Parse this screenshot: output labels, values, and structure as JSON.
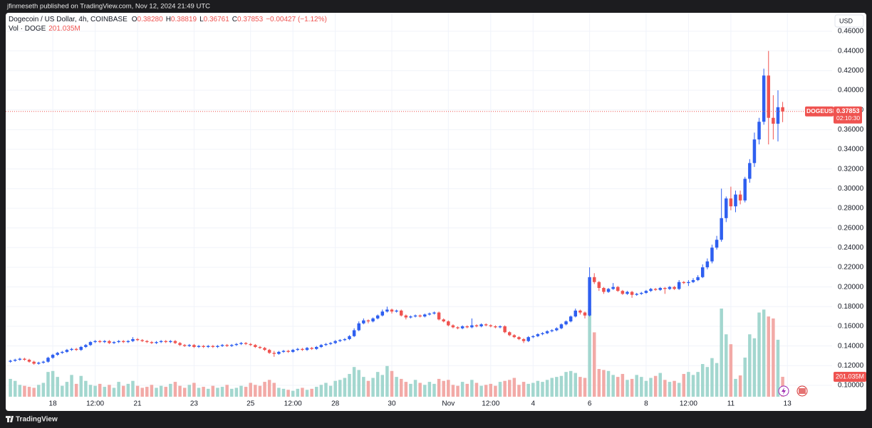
{
  "header": {
    "author_line": "jfinmeseth published on TradingView.com, Nov 12, 2024 21:49 UTC",
    "brand": "TradingView"
  },
  "chart_data": {
    "type": "candlestick",
    "title": "Dogecoin / US Dollar, 4h, COINBASE",
    "ohlc_letters": [
      "O",
      "H",
      "L",
      "C"
    ],
    "last_labels": [
      "0.38280",
      "0.38819",
      "0.36761",
      "0.37853"
    ],
    "change_label": "−0.00427 (−1.12%)",
    "volume_title": "Vol · DOGE",
    "volume_label": "201.035M",
    "currency": "USD",
    "price_tag": {
      "symbol": "DOGEUSD",
      "price": "0.37853",
      "countdown": "02:10:30"
    },
    "up_color": "#2e5ff0",
    "down_color": "#ef5350",
    "volume_up_color": "#a3d7cf",
    "volume_down_color": "#f2aaa7",
    "grid": true,
    "xlim": [
      -1,
      174.5
    ],
    "xticks": [
      {
        "value": 9,
        "label": "18"
      },
      {
        "value": 18,
        "label": "12:00"
      },
      {
        "value": 27,
        "label": "21"
      },
      {
        "value": 39,
        "label": "23"
      },
      {
        "value": 51,
        "label": "25"
      },
      {
        "value": 60,
        "label": "12:00"
      },
      {
        "value": 69,
        "label": "28"
      },
      {
        "value": 81,
        "label": "30"
      },
      {
        "value": 93,
        "label": "Nov"
      },
      {
        "value": 102,
        "label": "12:00"
      },
      {
        "value": 111,
        "label": "4"
      },
      {
        "value": 123,
        "label": "6"
      },
      {
        "value": 135,
        "label": "8"
      },
      {
        "value": 144,
        "label": "12:00"
      },
      {
        "value": 153,
        "label": "11"
      },
      {
        "value": 165,
        "label": "13"
      }
    ],
    "ylim": [
      0.0884,
      0.4788
    ],
    "yticks": [
      {
        "value": 0.1,
        "label": "0.10000"
      },
      {
        "value": 0.12,
        "label": "0.12000"
      },
      {
        "value": 0.14,
        "label": "0.14000"
      },
      {
        "value": 0.16,
        "label": "0.16000"
      },
      {
        "value": 0.18,
        "label": "0.18000"
      },
      {
        "value": 0.2,
        "label": "0.20000"
      },
      {
        "value": 0.22,
        "label": "0.22000"
      },
      {
        "value": 0.24,
        "label": "0.24000"
      },
      {
        "value": 0.26,
        "label": "0.26000"
      },
      {
        "value": 0.28,
        "label": "0.28000"
      },
      {
        "value": 0.3,
        "label": "0.30000"
      },
      {
        "value": 0.32,
        "label": "0.32000"
      },
      {
        "value": 0.34,
        "label": "0.34000"
      },
      {
        "value": 0.36,
        "label": "0.36000"
      },
      {
        "value": 0.38,
        "label": "0.38000"
      },
      {
        "value": 0.4,
        "label": "0.40000"
      },
      {
        "value": 0.42,
        "label": "0.42000"
      },
      {
        "value": 0.44,
        "label": "0.44000"
      },
      {
        "value": 0.46,
        "label": "0.46000"
      }
    ],
    "ohlc": [
      [
        0.124,
        0.126,
        0.123,
        0.125
      ],
      [
        0.125,
        0.127,
        0.124,
        0.126
      ],
      [
        0.126,
        0.128,
        0.125,
        0.127
      ],
      [
        0.127,
        0.128,
        0.125,
        0.126
      ],
      [
        0.126,
        0.127,
        0.123,
        0.124
      ],
      [
        0.124,
        0.125,
        0.121,
        0.122
      ],
      [
        0.122,
        0.124,
        0.121,
        0.123
      ],
      [
        0.123,
        0.125,
        0.122,
        0.124
      ],
      [
        0.124,
        0.129,
        0.123,
        0.128
      ],
      [
        0.128,
        0.132,
        0.127,
        0.131
      ],
      [
        0.131,
        0.134,
        0.13,
        0.133
      ],
      [
        0.133,
        0.135,
        0.132,
        0.134
      ],
      [
        0.134,
        0.137,
        0.133,
        0.136
      ],
      [
        0.136,
        0.138,
        0.135,
        0.137
      ],
      [
        0.137,
        0.138,
        0.135,
        0.136
      ],
      [
        0.136,
        0.14,
        0.135,
        0.139
      ],
      [
        0.139,
        0.142,
        0.138,
        0.141
      ],
      [
        0.141,
        0.145,
        0.14,
        0.144
      ],
      [
        0.144,
        0.146,
        0.143,
        0.145
      ],
      [
        0.145,
        0.146,
        0.143,
        0.144
      ],
      [
        0.144,
        0.146,
        0.143,
        0.145
      ],
      [
        0.145,
        0.146,
        0.142,
        0.143
      ],
      [
        0.143,
        0.145,
        0.142,
        0.144
      ],
      [
        0.144,
        0.146,
        0.143,
        0.145
      ],
      [
        0.145,
        0.146,
        0.143,
        0.144
      ],
      [
        0.144,
        0.146,
        0.143,
        0.145
      ],
      [
        0.145,
        0.149,
        0.144,
        0.147
      ],
      [
        0.147,
        0.148,
        0.145,
        0.146
      ],
      [
        0.146,
        0.147,
        0.144,
        0.145
      ],
      [
        0.145,
        0.146,
        0.143,
        0.144
      ],
      [
        0.144,
        0.145,
        0.142,
        0.143
      ],
      [
        0.143,
        0.145,
        0.142,
        0.144
      ],
      [
        0.144,
        0.146,
        0.143,
        0.145
      ],
      [
        0.145,
        0.146,
        0.143,
        0.144
      ],
      [
        0.144,
        0.146,
        0.143,
        0.145
      ],
      [
        0.145,
        0.146,
        0.142,
        0.143
      ],
      [
        0.143,
        0.144,
        0.14,
        0.141
      ],
      [
        0.141,
        0.142,
        0.139,
        0.14
      ],
      [
        0.14,
        0.142,
        0.139,
        0.141
      ],
      [
        0.141,
        0.142,
        0.138,
        0.139
      ],
      [
        0.139,
        0.141,
        0.138,
        0.14
      ],
      [
        0.14,
        0.141,
        0.138,
        0.139
      ],
      [
        0.139,
        0.141,
        0.138,
        0.14
      ],
      [
        0.14,
        0.141,
        0.138,
        0.139
      ],
      [
        0.139,
        0.141,
        0.138,
        0.14
      ],
      [
        0.14,
        0.142,
        0.139,
        0.141
      ],
      [
        0.141,
        0.142,
        0.139,
        0.14
      ],
      [
        0.14,
        0.142,
        0.139,
        0.141
      ],
      [
        0.141,
        0.143,
        0.14,
        0.142
      ],
      [
        0.142,
        0.144,
        0.141,
        0.143
      ],
      [
        0.143,
        0.144,
        0.141,
        0.142
      ],
      [
        0.142,
        0.143,
        0.14,
        0.141
      ],
      [
        0.141,
        0.142,
        0.138,
        0.139
      ],
      [
        0.139,
        0.14,
        0.137,
        0.138
      ],
      [
        0.138,
        0.139,
        0.135,
        0.136
      ],
      [
        0.136,
        0.137,
        0.132,
        0.133
      ],
      [
        0.133,
        0.135,
        0.129,
        0.132
      ],
      [
        0.132,
        0.135,
        0.131,
        0.134
      ],
      [
        0.134,
        0.136,
        0.133,
        0.135
      ],
      [
        0.135,
        0.136,
        0.133,
        0.134
      ],
      [
        0.134,
        0.137,
        0.133,
        0.136
      ],
      [
        0.136,
        0.138,
        0.135,
        0.137
      ],
      [
        0.137,
        0.138,
        0.135,
        0.136
      ],
      [
        0.136,
        0.139,
        0.135,
        0.138
      ],
      [
        0.138,
        0.139,
        0.136,
        0.137
      ],
      [
        0.137,
        0.14,
        0.136,
        0.139
      ],
      [
        0.139,
        0.142,
        0.138,
        0.141
      ],
      [
        0.141,
        0.143,
        0.14,
        0.142
      ],
      [
        0.142,
        0.144,
        0.141,
        0.143
      ],
      [
        0.143,
        0.146,
        0.142,
        0.145
      ],
      [
        0.145,
        0.147,
        0.144,
        0.146
      ],
      [
        0.146,
        0.148,
        0.145,
        0.147
      ],
      [
        0.147,
        0.151,
        0.146,
        0.15
      ],
      [
        0.15,
        0.158,
        0.149,
        0.156
      ],
      [
        0.156,
        0.165,
        0.155,
        0.163
      ],
      [
        0.163,
        0.168,
        0.162,
        0.166
      ],
      [
        0.166,
        0.167,
        0.163,
        0.165
      ],
      [
        0.165,
        0.169,
        0.164,
        0.168
      ],
      [
        0.168,
        0.172,
        0.167,
        0.171
      ],
      [
        0.171,
        0.177,
        0.17,
        0.175
      ],
      [
        0.175,
        0.18,
        0.174,
        0.177
      ],
      [
        0.177,
        0.178,
        0.173,
        0.175
      ],
      [
        0.175,
        0.177,
        0.174,
        0.176
      ],
      [
        0.176,
        0.177,
        0.17,
        0.171
      ],
      [
        0.171,
        0.172,
        0.167,
        0.169
      ],
      [
        0.169,
        0.171,
        0.168,
        0.17
      ],
      [
        0.17,
        0.172,
        0.169,
        0.171
      ],
      [
        0.171,
        0.172,
        0.169,
        0.17
      ],
      [
        0.17,
        0.173,
        0.169,
        0.172
      ],
      [
        0.172,
        0.174,
        0.171,
        0.173
      ],
      [
        0.173,
        0.175,
        0.172,
        0.174
      ],
      [
        0.174,
        0.175,
        0.166,
        0.167
      ],
      [
        0.167,
        0.168,
        0.164,
        0.165
      ],
      [
        0.165,
        0.166,
        0.16,
        0.161
      ],
      [
        0.161,
        0.162,
        0.158,
        0.159
      ],
      [
        0.159,
        0.16,
        0.157,
        0.158
      ],
      [
        0.158,
        0.161,
        0.157,
        0.16
      ],
      [
        0.16,
        0.161,
        0.158,
        0.159
      ],
      [
        0.159,
        0.168,
        0.158,
        0.161
      ],
      [
        0.161,
        0.162,
        0.159,
        0.16
      ],
      [
        0.16,
        0.163,
        0.159,
        0.162
      ],
      [
        0.162,
        0.163,
        0.16,
        0.161
      ],
      [
        0.161,
        0.162,
        0.159,
        0.16
      ],
      [
        0.16,
        0.161,
        0.158,
        0.159
      ],
      [
        0.159,
        0.161,
        0.158,
        0.16
      ],
      [
        0.16,
        0.161,
        0.153,
        0.154
      ],
      [
        0.154,
        0.155,
        0.15,
        0.151
      ],
      [
        0.151,
        0.152,
        0.148,
        0.149
      ],
      [
        0.149,
        0.15,
        0.146,
        0.147
      ],
      [
        0.147,
        0.148,
        0.143,
        0.145
      ],
      [
        0.145,
        0.15,
        0.144,
        0.149
      ],
      [
        0.149,
        0.151,
        0.148,
        0.15
      ],
      [
        0.15,
        0.153,
        0.149,
        0.152
      ],
      [
        0.152,
        0.154,
        0.151,
        0.153
      ],
      [
        0.153,
        0.156,
        0.152,
        0.155
      ],
      [
        0.155,
        0.157,
        0.154,
        0.156
      ],
      [
        0.156,
        0.159,
        0.155,
        0.158
      ],
      [
        0.158,
        0.163,
        0.157,
        0.162
      ],
      [
        0.162,
        0.166,
        0.161,
        0.165
      ],
      [
        0.165,
        0.171,
        0.164,
        0.17
      ],
      [
        0.17,
        0.178,
        0.169,
        0.176
      ],
      [
        0.176,
        0.177,
        0.172,
        0.174
      ],
      [
        0.174,
        0.175,
        0.168,
        0.171
      ],
      [
        0.171,
        0.22,
        0.17,
        0.21
      ],
      [
        0.21,
        0.214,
        0.203,
        0.205
      ],
      [
        0.205,
        0.206,
        0.196,
        0.199
      ],
      [
        0.199,
        0.2,
        0.193,
        0.195
      ],
      [
        0.195,
        0.199,
        0.194,
        0.198
      ],
      [
        0.198,
        0.204,
        0.197,
        0.2
      ],
      [
        0.2,
        0.201,
        0.195,
        0.196
      ],
      [
        0.196,
        0.197,
        0.192,
        0.193
      ],
      [
        0.193,
        0.196,
        0.192,
        0.195
      ],
      [
        0.195,
        0.196,
        0.189,
        0.192
      ],
      [
        0.192,
        0.194,
        0.191,
        0.193
      ],
      [
        0.193,
        0.195,
        0.192,
        0.194
      ],
      [
        0.194,
        0.197,
        0.193,
        0.196
      ],
      [
        0.196,
        0.199,
        0.195,
        0.198
      ],
      [
        0.198,
        0.199,
        0.196,
        0.197
      ],
      [
        0.197,
        0.2,
        0.196,
        0.199
      ],
      [
        0.199,
        0.2,
        0.193,
        0.198
      ],
      [
        0.198,
        0.201,
        0.197,
        0.2
      ],
      [
        0.2,
        0.201,
        0.197,
        0.198
      ],
      [
        0.198,
        0.207,
        0.197,
        0.205
      ],
      [
        0.205,
        0.206,
        0.203,
        0.204
      ],
      [
        0.204,
        0.207,
        0.201,
        0.205
      ],
      [
        0.205,
        0.209,
        0.204,
        0.207
      ],
      [
        0.207,
        0.212,
        0.206,
        0.21
      ],
      [
        0.21,
        0.223,
        0.209,
        0.22
      ],
      [
        0.22,
        0.229,
        0.218,
        0.226
      ],
      [
        0.226,
        0.243,
        0.224,
        0.24
      ],
      [
        0.24,
        0.252,
        0.238,
        0.248
      ],
      [
        0.248,
        0.3,
        0.246,
        0.27
      ],
      [
        0.27,
        0.292,
        0.266,
        0.29
      ],
      [
        0.29,
        0.302,
        0.278,
        0.282
      ],
      [
        0.282,
        0.298,
        0.276,
        0.294
      ],
      [
        0.294,
        0.298,
        0.284,
        0.288
      ],
      [
        0.288,
        0.312,
        0.286,
        0.31
      ],
      [
        0.31,
        0.33,
        0.306,
        0.326
      ],
      [
        0.326,
        0.357,
        0.322,
        0.35
      ],
      [
        0.35,
        0.372,
        0.345,
        0.368
      ],
      [
        0.368,
        0.422,
        0.365,
        0.415
      ],
      [
        0.415,
        0.44,
        0.345,
        0.372
      ],
      [
        0.372,
        0.395,
        0.35,
        0.366
      ],
      [
        0.366,
        0.4,
        0.348,
        0.3828
      ],
      [
        0.3828,
        0.38819,
        0.36761,
        0.37853
      ]
    ],
    "volume": [
      180,
      160,
      120,
      110,
      100,
      90,
      120,
      140,
      250,
      260,
      200,
      110,
      150,
      220,
      130,
      210,
      160,
      120,
      110,
      130,
      100,
      120,
      90,
      150,
      110,
      130,
      160,
      110,
      90,
      100,
      120,
      90,
      110,
      100,
      130,
      150,
      110,
      90,
      120,
      140,
      90,
      100,
      80,
      110,
      90,
      100,
      120,
      80,
      90,
      110,
      100,
      140,
      120,
      110,
      150,
      170,
      140,
      90,
      80,
      70,
      60,
      80,
      90,
      70,
      80,
      100,
      120,
      140,
      110,
      160,
      170,
      190,
      230,
      300,
      270,
      200,
      160,
      190,
      250,
      220,
      310,
      260,
      200,
      180,
      150,
      130,
      170,
      140,
      120,
      150,
      130,
      180,
      160,
      170,
      120,
      110,
      150,
      130,
      170,
      140,
      110,
      120,
      130,
      110,
      150,
      160,
      170,
      190,
      120,
      150,
      130,
      140,
      160,
      150,
      170,
      190,
      200,
      210,
      250,
      260,
      240,
      200,
      190,
      890,
      650,
      280,
      270,
      260,
      220,
      200,
      230,
      170,
      180,
      220,
      200,
      160,
      190,
      210,
      240,
      170,
      150,
      160,
      140,
      230,
      250,
      220,
      250,
      330,
      300,
      390,
      340,
      890,
      630,
      530,
      180,
      215,
      395,
      630,
      590,
      850,
      880,
      810,
      790,
      575,
      201.035
    ]
  }
}
